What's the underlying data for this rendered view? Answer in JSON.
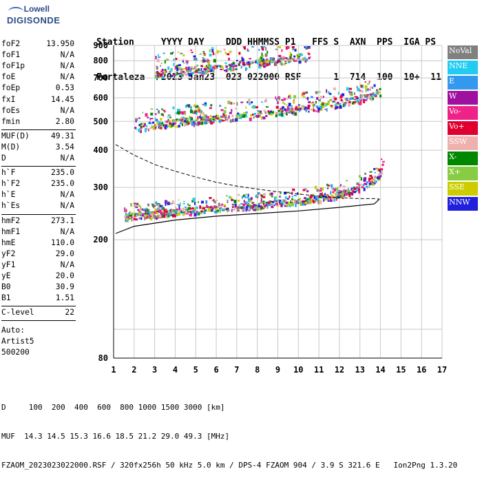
{
  "logo": {
    "line1": "Lowell",
    "line2": "DIGISONDE"
  },
  "header": {
    "row1": "Station     YYYY DAY    DDD HHMMSS P1   FFS S  AXN  PPS  IGA PS",
    "row2": "Fortaleza   2023 Jan23  023 022000 RSF      1  714  100  10+  11"
  },
  "params": {
    "block1": [
      {
        "name": "foF2",
        "value": "13.950"
      },
      {
        "name": "foF1",
        "value": "N/A"
      },
      {
        "name": "foF1p",
        "value": "N/A"
      },
      {
        "name": "foE",
        "value": "N/A"
      },
      {
        "name": "foEp",
        "value": "0.53"
      },
      {
        "name": "fxI",
        "value": "14.45"
      },
      {
        "name": "foEs",
        "value": "N/A"
      },
      {
        "name": "fmin",
        "value": "2.80"
      }
    ],
    "block2": [
      {
        "name": "MUF(D)",
        "value": "49.31"
      },
      {
        "name": "M(D)",
        "value": "3.54"
      },
      {
        "name": "D",
        "value": "N/A"
      }
    ],
    "block3": [
      {
        "name": "h`F",
        "value": "235.0"
      },
      {
        "name": "h`F2",
        "value": "235.0"
      },
      {
        "name": "h`E",
        "value": "N/A"
      },
      {
        "name": "h`Es",
        "value": "N/A"
      }
    ],
    "block4": [
      {
        "name": "hmF2",
        "value": "273.1"
      },
      {
        "name": "hmF1",
        "value": "N/A"
      },
      {
        "name": "hmE",
        "value": "110.0"
      },
      {
        "name": "yF2",
        "value": "29.0"
      },
      {
        "name": "yF1",
        "value": "N/A"
      },
      {
        "name": "yE",
        "value": "20.0"
      },
      {
        "name": "B0",
        "value": "30.9"
      },
      {
        "name": "B1",
        "value": "1.51"
      }
    ],
    "clevel": {
      "name": "C-level",
      "value": "22"
    },
    "auto": [
      "Auto:",
      "Artist5",
      "500200"
    ]
  },
  "legend": [
    {
      "label": "NoVal",
      "color": "#808080"
    },
    {
      "label": "NNE",
      "color": "#22ccf0"
    },
    {
      "label": "E",
      "color": "#3399ee"
    },
    {
      "label": "W",
      "color": "#a010a0"
    },
    {
      "label": "Vo-",
      "color": "#ee2288"
    },
    {
      "label": "Vo+",
      "color": "#e00030"
    },
    {
      "label": "SSW",
      "color": "#f0b0b0"
    },
    {
      "label": "X-",
      "color": "#008800"
    },
    {
      "label": "X+",
      "color": "#88cc44"
    },
    {
      "label": "SSE",
      "color": "#cccc00"
    },
    {
      "label": "NNW",
      "color": "#2020dd"
    }
  ],
  "footer": {
    "row1": "D     100  200  400  600  800 1000 1500 3000 [km]",
    "row2": "MUF  14.3 14.5 15.3 16.6 18.5 21.2 29.0 49.3 [MHz]",
    "row3": "FZAOM_2023023022000.RSF / 320fx256h 50 kHz 5.0 km / DPS-4 FZAOM 904 / 3.9 S 321.6 E   Ion2Png 1.3.20"
  },
  "chart_data": {
    "type": "scatter",
    "title": "",
    "xlabel": "",
    "ylabel": "",
    "xlim": [
      1,
      17
    ],
    "ylim": [
      80,
      900
    ],
    "y_scale": "log",
    "x_ticks": [
      1,
      2,
      3,
      4,
      5,
      6,
      7,
      8,
      9,
      10,
      11,
      12,
      13,
      14,
      15,
      16,
      17
    ],
    "y_ticks": [
      80,
      200,
      300,
      400,
      500,
      600,
      700,
      800,
      900
    ],
    "grid": true,
    "echo_traces": [
      {
        "name": "first-hop",
        "x": [
          1.5,
          2,
          3,
          4,
          5,
          6,
          7,
          8,
          9,
          10,
          11,
          12,
          12.5,
          13,
          13.5,
          13.9,
          14.1
        ],
        "y": [
          238,
          240,
          243,
          247,
          250,
          254,
          257,
          261,
          265,
          269,
          275,
          283,
          290,
          300,
          310,
          325,
          355
        ]
      },
      {
        "name": "second-hop",
        "x": [
          2,
          3,
          4,
          5,
          6,
          7,
          8,
          9,
          10,
          11,
          12,
          13,
          13.5,
          14
        ],
        "y": [
          478,
          485,
          495,
          503,
          512,
          520,
          528,
          538,
          548,
          560,
          575,
          595,
          610,
          630
        ]
      },
      {
        "name": "third-hop",
        "x": [
          3,
          4,
          5,
          6,
          7,
          8,
          9,
          10,
          10.5
        ],
        "y": [
          725,
          735,
          748,
          760,
          772,
          785,
          800,
          820,
          835
        ]
      }
    ],
    "model_profile": {
      "x": [
        1.1,
        2,
        3,
        4,
        5,
        6,
        7,
        8,
        9,
        10,
        11,
        12,
        13,
        13.7,
        13.95,
        13.7,
        12,
        10,
        8,
        6,
        4,
        2,
        1.1
      ],
      "y": [
        418,
        385,
        358,
        340,
        325,
        312,
        303,
        296,
        290,
        285,
        280,
        277,
        275,
        275,
        274,
        264,
        257,
        250,
        245,
        240,
        233,
        222,
        210
      ]
    }
  }
}
